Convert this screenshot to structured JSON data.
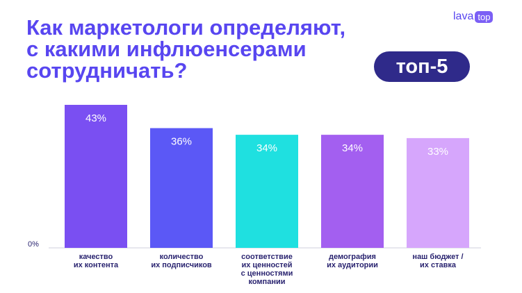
{
  "chart_data": {
    "type": "bar",
    "title": "Как маркетологи определяют,\nс какими инфлюенсерами\nсотрудничать?",
    "categories": [
      "качество\nих контента",
      "количество\nих подписчиков",
      "соответствие\nих ценностей\nс ценностями\nкомпании",
      "демография\nих аудитории",
      "наш бюджет /\nих ставка"
    ],
    "values": [
      43,
      36,
      34,
      34,
      33
    ],
    "value_labels": [
      "43%",
      "36%",
      "34%",
      "34%",
      "33%"
    ],
    "colors": [
      "#7a4ff2",
      "#5b58f6",
      "#1fe0e0",
      "#a35ff0",
      "#d6a6fc"
    ],
    "ylim": [
      0,
      43
    ],
    "yticks": [
      {
        "value": 0,
        "label": "0%"
      }
    ]
  },
  "logo": {
    "text": "lava",
    "badge": "top"
  },
  "badge": "топ-5"
}
